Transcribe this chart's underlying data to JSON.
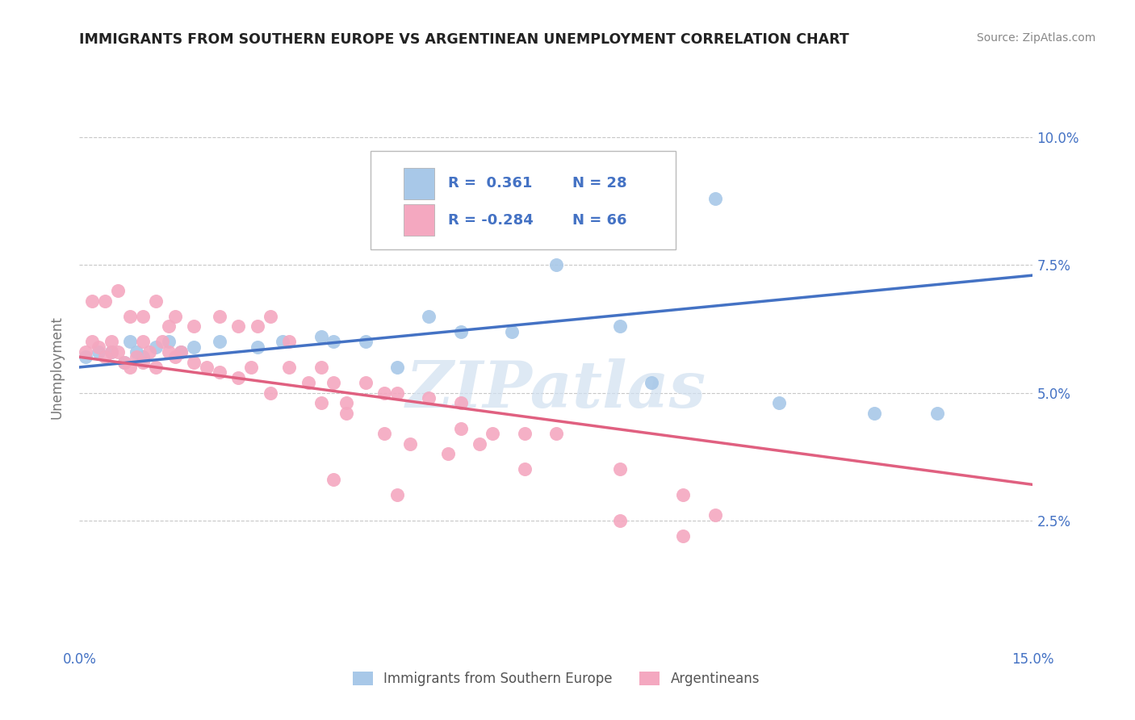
{
  "title": "IMMIGRANTS FROM SOUTHERN EUROPE VS ARGENTINEAN UNEMPLOYMENT CORRELATION CHART",
  "source": "Source: ZipAtlas.com",
  "ylabel": "Unemployment",
  "x_min": 0.0,
  "x_max": 0.15,
  "y_min": 0.0,
  "y_max": 0.11,
  "x_ticks": [
    0.0,
    0.025,
    0.05,
    0.075,
    0.1,
    0.125,
    0.15
  ],
  "x_tick_labels": [
    "0.0%",
    "",
    "",
    "",
    "",
    "",
    "15.0%"
  ],
  "y_ticks": [
    0.025,
    0.05,
    0.075,
    0.1
  ],
  "y_tick_labels": [
    "2.5%",
    "5.0%",
    "7.5%",
    "10.0%"
  ],
  "blue_scatter_x": [
    0.001,
    0.003,
    0.005,
    0.007,
    0.008,
    0.009,
    0.01,
    0.012,
    0.014,
    0.016,
    0.018,
    0.022,
    0.028,
    0.032,
    0.038,
    0.04,
    0.045,
    0.05,
    0.055,
    0.06,
    0.068,
    0.075,
    0.085,
    0.09,
    0.1,
    0.11,
    0.125,
    0.135
  ],
  "blue_scatter_y": [
    0.057,
    0.058,
    0.058,
    0.056,
    0.06,
    0.058,
    0.057,
    0.059,
    0.06,
    0.058,
    0.059,
    0.06,
    0.059,
    0.06,
    0.061,
    0.06,
    0.06,
    0.055,
    0.065,
    0.062,
    0.062,
    0.075,
    0.063,
    0.052,
    0.088,
    0.048,
    0.046,
    0.046
  ],
  "pink_scatter_x": [
    0.001,
    0.002,
    0.003,
    0.004,
    0.005,
    0.005,
    0.006,
    0.007,
    0.008,
    0.009,
    0.01,
    0.01,
    0.011,
    0.012,
    0.013,
    0.014,
    0.015,
    0.016,
    0.018,
    0.02,
    0.022,
    0.025,
    0.027,
    0.03,
    0.033,
    0.036,
    0.038,
    0.04,
    0.042,
    0.045,
    0.048,
    0.05,
    0.055,
    0.06,
    0.06,
    0.065,
    0.07,
    0.075,
    0.085,
    0.095,
    0.1,
    0.002,
    0.004,
    0.006,
    0.008,
    0.01,
    0.012,
    0.014,
    0.015,
    0.018,
    0.022,
    0.025,
    0.028,
    0.03,
    0.033,
    0.038,
    0.042,
    0.048,
    0.052,
    0.058,
    0.063,
    0.07,
    0.085,
    0.095,
    0.04,
    0.05
  ],
  "pink_scatter_y": [
    0.058,
    0.06,
    0.059,
    0.057,
    0.06,
    0.058,
    0.058,
    0.056,
    0.055,
    0.057,
    0.06,
    0.056,
    0.058,
    0.055,
    0.06,
    0.058,
    0.057,
    0.058,
    0.056,
    0.055,
    0.054,
    0.053,
    0.055,
    0.05,
    0.055,
    0.052,
    0.055,
    0.052,
    0.048,
    0.052,
    0.05,
    0.05,
    0.049,
    0.048,
    0.043,
    0.042,
    0.042,
    0.042,
    0.035,
    0.03,
    0.026,
    0.068,
    0.068,
    0.07,
    0.065,
    0.065,
    0.068,
    0.063,
    0.065,
    0.063,
    0.065,
    0.063,
    0.063,
    0.065,
    0.06,
    0.048,
    0.046,
    0.042,
    0.04,
    0.038,
    0.04,
    0.035,
    0.025,
    0.022,
    0.033,
    0.03
  ],
  "blue_line_x": [
    0.0,
    0.15
  ],
  "blue_line_y": [
    0.055,
    0.073
  ],
  "pink_line_x": [
    0.0,
    0.15
  ],
  "pink_line_y": [
    0.057,
    0.032
  ],
  "blue_color": "#a8c8e8",
  "pink_color": "#f4a8c0",
  "blue_line_color": "#4472c4",
  "pink_line_color": "#e06080",
  "legend_blue_r": "R =  0.361",
  "legend_blue_n": "N = 28",
  "legend_pink_r": "R = -0.284",
  "legend_pink_n": "N = 66",
  "legend_color_blue": "#a8c8e8",
  "legend_color_pink": "#f4a8c0",
  "legend_r_color": "#4472c4",
  "watermark": "ZIPatlas",
  "bg_color": "#ffffff",
  "grid_color": "#c8c8c8",
  "tick_color": "#4472c4",
  "legend_label_blue": "Immigrants from Southern Europe",
  "legend_label_pink": "Argentineans"
}
